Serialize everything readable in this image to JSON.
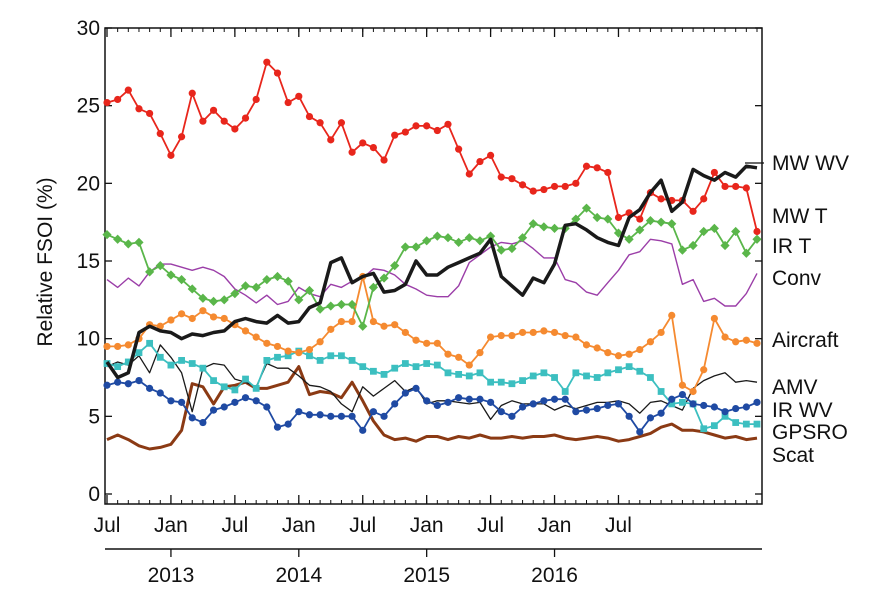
{
  "chart_data": {
    "type": "line",
    "ylabel": "Relative FSOI (%)",
    "ylim": [
      0,
      30
    ],
    "y_ticks": [
      0,
      5,
      10,
      15,
      20,
      25,
      30
    ],
    "x_start": "2012-07",
    "x_end": "2016-11",
    "x_tick_labels": [
      {
        "month": "2012-07",
        "label": "Jul"
      },
      {
        "month": "2013-01",
        "label": "Jan"
      },
      {
        "month": "2013-07",
        "label": "Jul"
      },
      {
        "month": "2014-01",
        "label": "Jan"
      },
      {
        "month": "2014-07",
        "label": "Jul"
      },
      {
        "month": "2015-01",
        "label": "Jan"
      },
      {
        "month": "2015-07",
        "label": "Jul"
      },
      {
        "month": "2016-01",
        "label": "Jan"
      },
      {
        "month": "2016-07",
        "label": "Jul"
      }
    ],
    "year_labels": [
      {
        "month": "2013-01",
        "label": "2013"
      },
      {
        "month": "2014-01",
        "label": "2014"
      },
      {
        "month": "2015-01",
        "label": "2015"
      },
      {
        "month": "2016-01",
        "label": "2016"
      }
    ],
    "grid": false,
    "legend": "right",
    "series": [
      {
        "name": "MW WV",
        "color": "#e8261c",
        "width": 1.8,
        "marker": "circle",
        "values": [
          25.2,
          25.4,
          26.0,
          24.8,
          24.5,
          23.2,
          21.8,
          23.0,
          25.8,
          24.0,
          24.7,
          24.0,
          23.5,
          24.2,
          25.4,
          27.8,
          27.1,
          25.2,
          25.6,
          24.3,
          23.9,
          22.8,
          23.9,
          22.0,
          22.6,
          22.3,
          21.5,
          23.1,
          23.3,
          23.7,
          23.7,
          23.4,
          23.8,
          22.2,
          20.6,
          21.4,
          21.8,
          20.4,
          20.3,
          19.9,
          19.5,
          19.6,
          19.8,
          19.8,
          20.0,
          21.1,
          21.0,
          20.7,
          17.8,
          18.1,
          17.7,
          19.4,
          19.0,
          18.9,
          18.9,
          18.2,
          19.0,
          20.7,
          19.8,
          19.8,
          19.7,
          16.9
        ]
      },
      {
        "name": "MW T",
        "color": "#1a1a1a",
        "width": 3.5,
        "marker": "none",
        "values": [
          8.5,
          7.5,
          7.8,
          10.4,
          10.8,
          10.5,
          10.4,
          10.0,
          10.3,
          10.2,
          10.4,
          10.5,
          11.1,
          11.3,
          11.1,
          11.0,
          11.5,
          11.0,
          11.1,
          12.0,
          12.3,
          14.9,
          15.2,
          13.6,
          14.0,
          14.2,
          13.0,
          13.1,
          13.5,
          15.0,
          14.1,
          14.1,
          14.6,
          14.9,
          15.2,
          15.5,
          16.4,
          14.0,
          13.4,
          12.8,
          13.9,
          13.6,
          14.8,
          17.3,
          17.4,
          17.0,
          16.5,
          16.2,
          16.0,
          17.8,
          18.3,
          19.4,
          20.2,
          18.2,
          18.8,
          20.9,
          20.5,
          20.2,
          20.7,
          20.4,
          21.1,
          21.0
        ]
      },
      {
        "name": "IR T",
        "color": "#5ab64a",
        "width": 1.8,
        "marker": "diamond",
        "values": [
          16.7,
          16.4,
          16.1,
          16.2,
          14.3,
          14.7,
          14.1,
          13.8,
          13.2,
          12.6,
          12.4,
          12.5,
          12.9,
          13.4,
          13.3,
          13.8,
          14.0,
          13.7,
          12.5,
          13.1,
          11.9,
          12.1,
          12.2,
          12.2,
          10.8,
          13.3,
          13.9,
          14.7,
          15.9,
          15.9,
          16.3,
          16.6,
          16.5,
          16.2,
          16.5,
          16.3,
          16.6,
          15.7,
          15.8,
          16.5,
          17.4,
          17.2,
          17.1,
          17.1,
          17.7,
          18.4,
          17.8,
          17.7,
          16.8,
          16.4,
          17.0,
          17.6,
          17.5,
          17.4,
          15.7,
          16.0,
          16.9,
          17.1,
          16.0,
          16.9,
          15.5,
          16.4
        ]
      },
      {
        "name": "Conv",
        "color": "#9b3ea8",
        "width": 1.4,
        "marker": "none",
        "values": [
          13.8,
          13.3,
          13.9,
          13.4,
          14.3,
          14.8,
          14.8,
          14.6,
          14.4,
          14.6,
          14.4,
          14.0,
          13.2,
          12.8,
          12.3,
          12.8,
          12.2,
          12.4,
          13.3,
          12.9,
          12.7,
          13.5,
          13.3,
          13.7,
          13.9,
          14.5,
          14.4,
          14.1,
          13.5,
          13.2,
          12.8,
          12.7,
          12.7,
          13.4,
          14.9,
          15.4,
          15.9,
          16.2,
          16.1,
          16.3,
          15.8,
          15.2,
          15.2,
          13.8,
          13.6,
          13.0,
          12.8,
          13.6,
          14.4,
          15.4,
          15.6,
          16.4,
          16.3,
          16.1,
          13.5,
          13.8,
          12.4,
          12.6,
          12.1,
          12.1,
          12.9,
          14.2
        ]
      },
      {
        "name": "Aircraft",
        "color": "#f58a30",
        "width": 1.8,
        "marker": "circle",
        "values": [
          9.5,
          9.5,
          9.6,
          10.0,
          10.9,
          10.8,
          11.2,
          11.6,
          11.3,
          11.8,
          11.4,
          11.3,
          10.9,
          10.5,
          10.1,
          9.7,
          9.5,
          9.2,
          9.1,
          9.3,
          9.8,
          10.6,
          11.1,
          11.1,
          14.0,
          11.1,
          10.8,
          10.9,
          10.4,
          9.9,
          9.7,
          9.7,
          9.0,
          8.8,
          8.3,
          9.1,
          10.1,
          10.2,
          10.2,
          10.4,
          10.4,
          10.5,
          10.4,
          10.2,
          10.1,
          9.6,
          9.4,
          9.1,
          8.9,
          9.0,
          9.3,
          9.8,
          10.4,
          11.5,
          7.0,
          6.6,
          8.0,
          11.3,
          10.1,
          9.8,
          9.9,
          9.7
        ]
      },
      {
        "name": "AMV",
        "color": "#1a1a1a",
        "width": 1.3,
        "marker": "none",
        "values": [
          8.2,
          8.5,
          8.3,
          8.9,
          7.8,
          9.6,
          8.8,
          7.8,
          5.3,
          8.1,
          8.4,
          8.3,
          7.4,
          7.2,
          6.9,
          8.4,
          8.1,
          8.1,
          7.6,
          7.0,
          6.9,
          6.6,
          5.8,
          5.3,
          6.9,
          6.3,
          6.8,
          7.3,
          6.6,
          6.9,
          5.8,
          6.0,
          6.0,
          5.9,
          5.8,
          5.9,
          4.8,
          5.7,
          6.0,
          5.8,
          5.8,
          5.8,
          5.4,
          5.7,
          5.5,
          5.7,
          5.9,
          5.9,
          6.0,
          5.8,
          5.2,
          5.9,
          6.0,
          5.7,
          5.4,
          6.8,
          7.3,
          7.6,
          7.8,
          7.2,
          7.3,
          7.2
        ]
      },
      {
        "name": "IR WV",
        "color": "#1f4aa3",
        "width": 1.8,
        "marker": "circle",
        "values": [
          7.0,
          7.2,
          7.1,
          7.3,
          6.8,
          6.5,
          6.0,
          5.9,
          4.9,
          4.6,
          5.4,
          5.6,
          5.9,
          6.2,
          6.0,
          5.6,
          4.3,
          4.5,
          5.3,
          5.1,
          5.1,
          5.0,
          5.0,
          5.0,
          4.1,
          5.3,
          5.0,
          5.8,
          6.5,
          6.8,
          6.0,
          5.7,
          5.9,
          6.2,
          6.1,
          6.1,
          5.9,
          5.3,
          5.0,
          5.6,
          5.8,
          6.0,
          6.1,
          6.1,
          5.3,
          5.4,
          5.5,
          5.7,
          5.8,
          5.0,
          4.0,
          4.9,
          5.2,
          6.1,
          6.4,
          5.8,
          5.7,
          5.6,
          5.3,
          5.5,
          5.6,
          5.9
        ]
      },
      {
        "name": "GPSRO",
        "color": "#3cbfc0",
        "width": 1.8,
        "marker": "square",
        "values": [
          8.4,
          8.2,
          8.5,
          9.1,
          9.7,
          8.8,
          8.3,
          8.6,
          8.4,
          8.1,
          7.3,
          6.9,
          6.7,
          7.4,
          6.8,
          8.6,
          8.8,
          8.9,
          9.2,
          8.9,
          8.6,
          8.9,
          8.9,
          8.6,
          8.2,
          7.9,
          7.7,
          8.1,
          8.4,
          8.2,
          8.4,
          8.3,
          7.8,
          7.7,
          7.6,
          7.8,
          7.2,
          7.2,
          7.1,
          7.3,
          7.6,
          7.8,
          7.5,
          6.6,
          7.8,
          7.6,
          7.5,
          7.8,
          8.0,
          8.2,
          7.9,
          7.5,
          6.6,
          5.8,
          5.9,
          5.8,
          4.2,
          4.4,
          5.0,
          4.6,
          4.5,
          4.5
        ]
      },
      {
        "name": "Scat",
        "color": "#8b3a14",
        "width": 3.0,
        "marker": "none",
        "values": [
          3.5,
          3.8,
          3.5,
          3.1,
          2.9,
          3.0,
          3.2,
          4.1,
          7.1,
          6.9,
          5.8,
          6.9,
          7.0,
          7.2,
          6.8,
          6.8,
          7.0,
          7.2,
          8.2,
          6.4,
          6.6,
          6.5,
          6.2,
          7.2,
          6.0,
          4.7,
          3.8,
          3.5,
          3.6,
          3.4,
          3.7,
          3.7,
          3.5,
          3.7,
          3.6,
          3.8,
          3.6,
          3.6,
          3.7,
          3.6,
          3.7,
          3.7,
          3.8,
          3.6,
          3.5,
          3.6,
          3.7,
          3.6,
          3.4,
          3.5,
          3.7,
          3.9,
          4.3,
          4.5,
          4.1,
          4.1,
          4.0,
          3.8,
          3.6,
          3.7,
          3.5,
          3.6
        ]
      }
    ]
  }
}
